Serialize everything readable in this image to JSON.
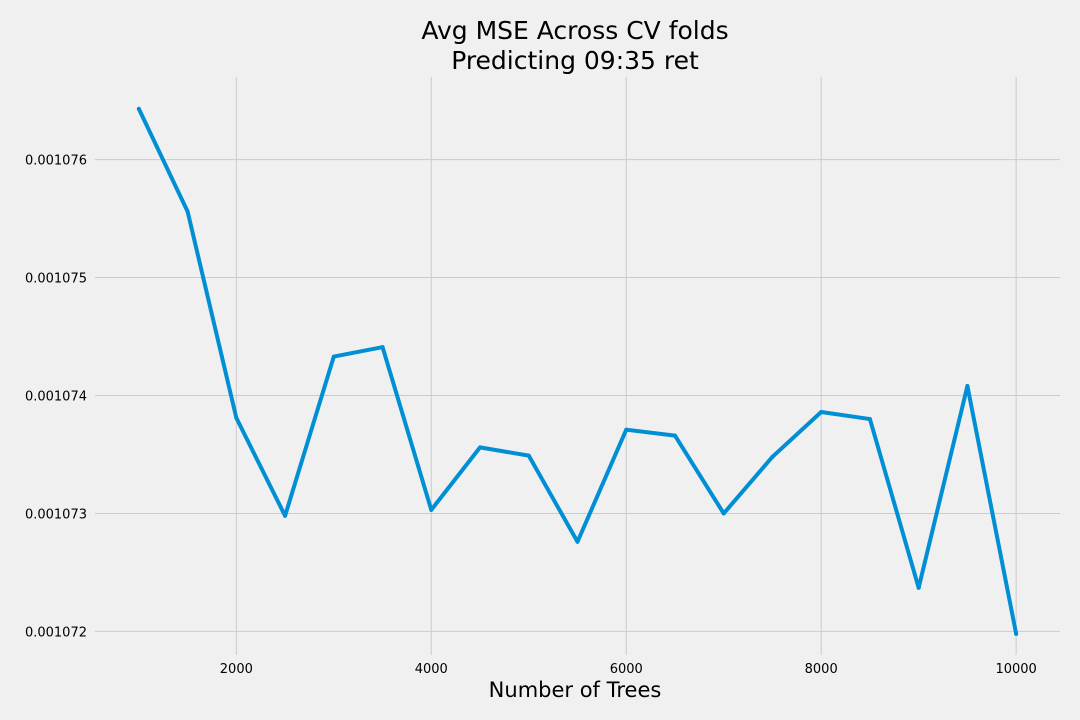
{
  "chart_data": {
    "type": "line",
    "title_line1": "Avg MSE Across CV folds",
    "title_line2": "Predicting 09:35 ret",
    "xlabel": "Number of Trees",
    "ylabel": "",
    "grid": true,
    "line_color": "#008fd5",
    "background_color": "#f0f0f0",
    "grid_color": "#cbcbcb",
    "xlim": [
      550,
      10450
    ],
    "ylim": [
      0.0010718,
      0.0010767
    ],
    "xticks": [
      2000,
      4000,
      6000,
      8000,
      10000
    ],
    "xtick_labels": [
      "2000",
      "4000",
      "6000",
      "8000",
      "10000"
    ],
    "yticks": [
      0.001072,
      0.001073,
      0.001074,
      0.001075,
      0.001076
    ],
    "ytick_labels": [
      "0.001072",
      "0.001073",
      "0.001074",
      "0.001075",
      "0.001076"
    ],
    "series": [
      {
        "x": [
          1000,
          1500,
          2000,
          2500,
          3000,
          3500,
          4000,
          4500,
          5000,
          5500,
          6000,
          6500,
          7000,
          7500,
          8000,
          8500,
          9000,
          9500,
          10000
        ],
        "y": [
          0.00107643,
          0.00107556,
          0.00107381,
          0.00107298,
          0.00107433,
          0.00107441,
          0.00107303,
          0.00107356,
          0.00107349,
          0.00107276,
          0.00107371,
          0.00107366,
          0.001073,
          0.00107348,
          0.00107386,
          0.0010738,
          0.00107237,
          0.00107408,
          0.00107198
        ]
      }
    ]
  }
}
